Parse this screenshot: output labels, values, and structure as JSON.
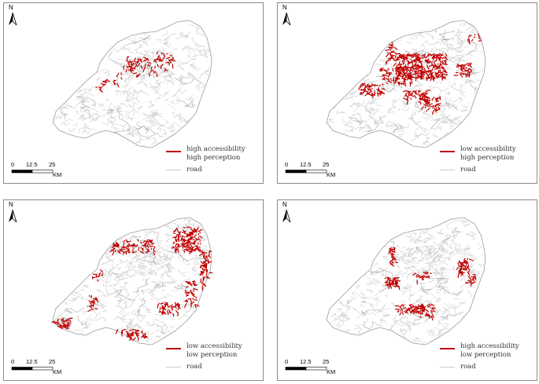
{
  "panels": [
    {
      "id": "a",
      "legend_line1": "high accessibility",
      "legend_line2": "high perception",
      "legend_road": "road",
      "highlight_zone": "central-core"
    },
    {
      "id": "b",
      "legend_line1": "low accessibility",
      "legend_line2": "high perception",
      "legend_road": "road",
      "highlight_zone": "central-dense"
    },
    {
      "id": "c",
      "legend_line1": "low accessibility",
      "legend_line2": "low perception",
      "legend_road": "road",
      "highlight_zone": "periphery"
    },
    {
      "id": "d",
      "legend_line1": "high accessibility",
      "legend_line2": "low perception",
      "legend_road": "road",
      "highlight_zone": "middle-ring"
    }
  ],
  "north_label": "N",
  "scale": {
    "t0": "0",
    "t1": "12.5",
    "t2": "25",
    "unit": "KM"
  },
  "colors": {
    "highlight": "#c00000",
    "road": "#c9c9c9",
    "boundary": "#9a9a9a"
  }
}
